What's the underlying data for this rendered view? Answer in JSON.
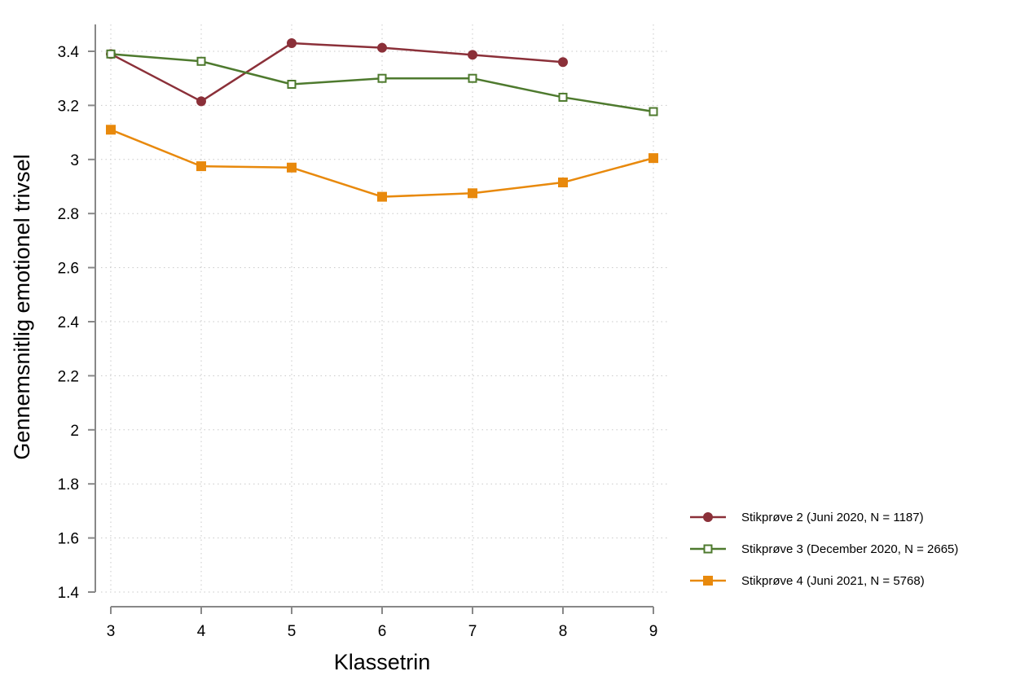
{
  "chart_data": {
    "type": "line",
    "title": "",
    "xlabel": "Klassetrin",
    "ylabel": "Gennemsnitlig emotionel trivsel",
    "x": [
      3,
      4,
      5,
      6,
      7,
      8,
      9
    ],
    "x_tick_labels": [
      "3",
      "4",
      "5",
      "6",
      "7",
      "8",
      "9"
    ],
    "xlim": [
      3,
      9
    ],
    "y_ticks": [
      1.4,
      1.6,
      1.8,
      2,
      2.2,
      2.4,
      2.6,
      2.8,
      3,
      3.2,
      3.4
    ],
    "y_tick_labels": [
      "1.4",
      "1.6",
      "1.8",
      "2",
      "2.2",
      "2.4",
      "2.6",
      "2.8",
      "3",
      "3.2",
      "3.4"
    ],
    "ylim": [
      1.4,
      3.5
    ],
    "grid": true,
    "legend_position": "right",
    "series": [
      {
        "name": "Stikprøve 2 (Juni 2020, N = 1187)",
        "color": "#8B3039",
        "marker": "circle-filled",
        "x": [
          3,
          4,
          5,
          6,
          7,
          8
        ],
        "values": [
          3.39,
          3.215,
          3.43,
          3.413,
          3.387,
          3.36
        ]
      },
      {
        "name": "Stikprøve 3 (December 2020, N = 2665)",
        "color": "#4E7A2E",
        "marker": "square-hollow",
        "x": [
          3,
          4,
          5,
          6,
          7,
          8,
          9
        ],
        "values": [
          3.39,
          3.363,
          3.278,
          3.3,
          3.3,
          3.23,
          3.177
        ]
      },
      {
        "name": "Stikprøve 4 (Juni 2021, N = 5768)",
        "color": "#E8890C",
        "marker": "square-filled",
        "x": [
          3,
          4,
          5,
          6,
          7,
          8,
          9
        ],
        "values": [
          3.11,
          2.975,
          2.97,
          2.862,
          2.875,
          2.915,
          3.005
        ]
      }
    ]
  }
}
